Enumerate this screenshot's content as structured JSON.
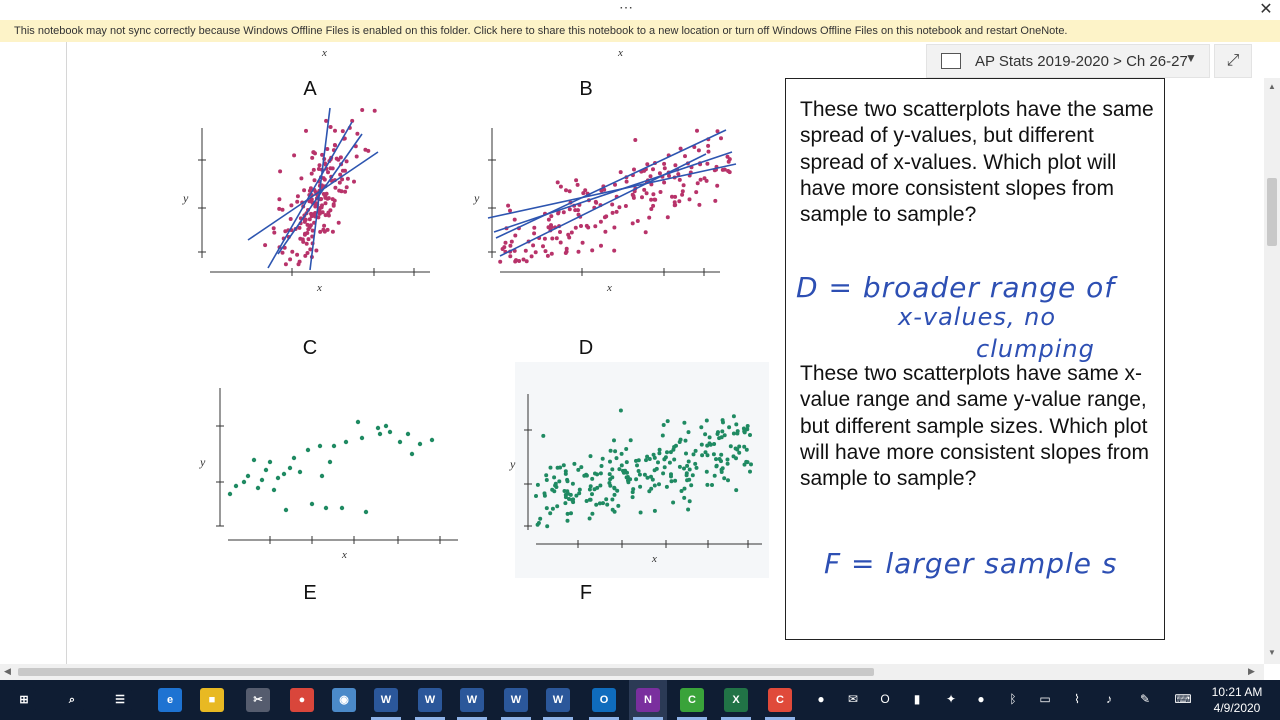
{
  "window": {
    "more_glyph": "⋯",
    "close_glyph": "✕",
    "sync_warning": "This notebook may not sync correctly because Windows Offline Files is enabled on this folder. Click here to share this notebook to a new location or turn off Windows Offline Files on this notebook and restart OneNote."
  },
  "breadcrumb": {
    "text": "AP Stats 2019-2020 > Ch 26-27",
    "icon": "notebook-icon",
    "chevron": "▼",
    "expand_glyph": "⤢"
  },
  "plots": {
    "labels": {
      "A": "A",
      "B": "B",
      "C": "C",
      "D": "D",
      "E": "E",
      "F": "F"
    },
    "axis_x": "x",
    "axis_y": "y",
    "maroon_color": "#b8336a",
    "line_color": "#2d55b0",
    "green_color": "#1f8a62"
  },
  "notes": {
    "question1": "These two scatterplots have the same spread of y-values, but different spread of x-values. Which plot will have more consistent slopes from sample to sample?",
    "answer1_line1": "D = broader range of",
    "answer1_line2": "x-values, no",
    "answer1_line3": "clumping",
    "question2": "These two scatterplots have same x-value range and same y-value range, but different sample sizes. Which plot will have more consistent slopes from sample to sample?",
    "answer2": "F = larger sample s"
  },
  "scrollbars": {
    "up": "▲",
    "down": "▼",
    "left": "◀",
    "right": "▶"
  },
  "taskbar": {
    "apps": [
      {
        "name": "start",
        "glyph": "⊞",
        "color": "#0f1d33"
      },
      {
        "name": "search",
        "glyph": "⌕",
        "color": "#0f1d33"
      },
      {
        "name": "task-view",
        "glyph": "☰",
        "color": "#0f1d33"
      },
      {
        "name": "edge",
        "glyph": "e",
        "color": "#1e73d2"
      },
      {
        "name": "file-explorer",
        "glyph": "■",
        "color": "#e8b923"
      },
      {
        "name": "snipping",
        "glyph": "✂",
        "color": "#555c6e"
      },
      {
        "name": "chrome",
        "glyph": "●",
        "color": "#d9463b"
      },
      {
        "name": "app-blue",
        "glyph": "◉",
        "color": "#4b8ac9"
      },
      {
        "name": "word-1",
        "glyph": "W",
        "color": "#2b579a"
      },
      {
        "name": "word-2",
        "glyph": "W",
        "color": "#2b579a"
      },
      {
        "name": "word-3",
        "glyph": "W",
        "color": "#2b579a"
      },
      {
        "name": "word-4",
        "glyph": "W",
        "color": "#2b579a"
      },
      {
        "name": "word-5",
        "glyph": "W",
        "color": "#2b579a"
      },
      {
        "name": "outlook",
        "glyph": "O",
        "color": "#0f6cbd"
      },
      {
        "name": "onenote",
        "glyph": "N",
        "color": "#7a2f9e"
      },
      {
        "name": "camtasia",
        "glyph": "C",
        "color": "#3aa33a"
      },
      {
        "name": "excel",
        "glyph": "X",
        "color": "#217346"
      },
      {
        "name": "recorder",
        "glyph": "C",
        "color": "#e04a3a"
      }
    ],
    "tray": [
      {
        "name": "tray-circle",
        "glyph": "●"
      },
      {
        "name": "tray-mail",
        "glyph": "✉"
      },
      {
        "name": "tray-outlook",
        "glyph": "O"
      },
      {
        "name": "tray-battery-app",
        "glyph": "▮"
      },
      {
        "name": "tray-paint",
        "glyph": "✦"
      },
      {
        "name": "tray-green",
        "glyph": "●"
      },
      {
        "name": "tray-bluetooth",
        "glyph": "ᛒ"
      },
      {
        "name": "tray-battery",
        "glyph": "▭"
      },
      {
        "name": "tray-wifi",
        "glyph": "⌇"
      },
      {
        "name": "tray-volume",
        "glyph": "♪"
      },
      {
        "name": "tray-pen",
        "glyph": "✎"
      },
      {
        "name": "tray-keyboard",
        "glyph": "⌨"
      }
    ],
    "time": "10:21 AM",
    "date": "4/9/2020"
  }
}
